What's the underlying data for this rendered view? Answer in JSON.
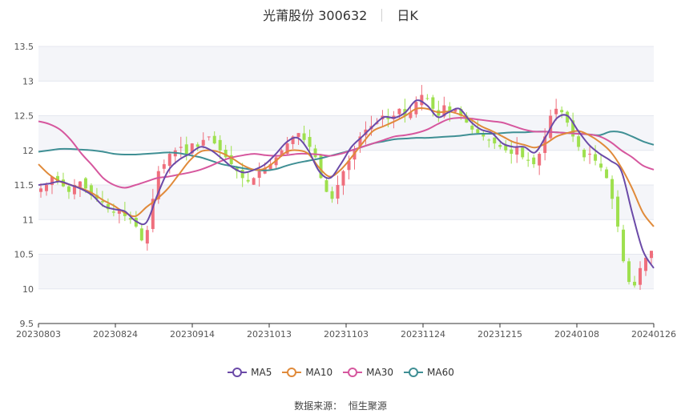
{
  "header": {
    "title": "光莆股份 300632",
    "period": "日K"
  },
  "source": {
    "label": "数据来源：",
    "value": "恒生聚源"
  },
  "colors": {
    "up": "#ef6f7d",
    "down": "#9ee04e",
    "grid": "#e4e7ef",
    "band": "#f4f5f9",
    "axis": "#555555",
    "ma5": "#6b4aa8",
    "ma10": "#e08a3a",
    "ma30": "#d6579e",
    "ma60": "#3f8f94"
  },
  "chart_data": {
    "type": "candlestick",
    "x_ticks": [
      "20230803",
      "20230824",
      "20230914",
      "20231013",
      "20231103",
      "20231124",
      "20231215",
      "20240108",
      "20240126"
    ],
    "ylim": [
      9.5,
      13.5
    ],
    "y_ticks": [
      "13.5",
      "13",
      "12.5",
      "12",
      "11.5",
      "11",
      "10.5",
      "10",
      "9.5"
    ],
    "grid": true,
    "legend_position": "bottom",
    "close_trace": [
      11.45,
      11.5,
      11.62,
      11.55,
      11.48,
      11.4,
      11.5,
      11.55,
      11.45,
      11.35,
      11.3,
      11.25,
      11.15,
      11.1,
      11.15,
      11.05,
      11.0,
      10.9,
      10.7,
      10.85,
      11.3,
      11.7,
      11.8,
      11.95,
      12.0,
      12.05,
      11.95,
      12.1,
      12.05,
      12.15,
      12.2,
      12.1,
      12.0,
      11.9,
      11.8,
      11.7,
      11.6,
      11.55,
      11.6,
      11.7,
      11.75,
      11.8,
      11.9,
      12.0,
      12.1,
      12.2,
      12.25,
      12.15,
      12.05,
      11.9,
      11.6,
      11.4,
      11.3,
      11.5,
      11.7,
      11.85,
      12.0,
      12.2,
      12.3,
      12.35,
      12.4,
      12.5,
      12.45,
      12.5,
      12.6,
      12.5,
      12.55,
      12.7,
      12.8,
      12.75,
      12.6,
      12.5,
      12.65,
      12.55,
      12.6,
      12.5,
      12.4,
      12.3,
      12.25,
      12.2,
      12.15,
      12.1,
      12.05,
      12.0,
      11.95,
      12.05,
      11.9,
      11.85,
      11.8,
      11.95,
      12.2,
      12.5,
      12.6,
      12.55,
      12.4,
      12.2,
      12.05,
      11.9,
      11.95,
      11.85,
      11.75,
      11.6,
      11.3,
      10.9,
      10.4,
      10.1,
      10.05,
      10.3,
      10.45,
      10.55
    ],
    "series": [
      {
        "name": "MA5",
        "values": [
          11.5,
          11.52,
          11.55,
          11.5,
          11.44,
          11.35,
          11.2,
          11.15,
          11.12,
          10.98,
          10.96,
          11.35,
          11.7,
          11.86,
          11.95,
          12.05,
          12.0,
          11.88,
          11.75,
          11.68,
          11.72,
          11.8,
          11.95,
          12.12,
          12.18,
          12.0,
          11.7,
          11.6,
          11.8,
          12.05,
          12.2,
          12.35,
          12.48,
          12.47,
          12.55,
          12.72,
          12.65,
          12.48,
          12.55,
          12.6,
          12.42,
          12.3,
          12.25,
          12.1,
          12.05,
          12.05,
          11.97,
          12.2,
          12.46,
          12.5,
          12.28,
          12.08,
          11.95,
          11.85,
          11.7,
          11.1,
          10.55,
          10.3
        ]
      },
      {
        "name": "MA10",
        "values": [
          11.8,
          11.65,
          11.55,
          11.5,
          11.45,
          11.38,
          11.28,
          11.2,
          11.1,
          11.05,
          11.18,
          11.3,
          11.45,
          11.65,
          11.85,
          11.98,
          12.0,
          11.96,
          11.88,
          11.78,
          11.72,
          11.74,
          11.85,
          11.98,
          12.0,
          11.95,
          11.75,
          11.62,
          11.72,
          11.9,
          12.1,
          12.28,
          12.35,
          12.42,
          12.5,
          12.6,
          12.6,
          12.55,
          12.56,
          12.52,
          12.45,
          12.35,
          12.28,
          12.2,
          12.12,
          12.08,
          12.04,
          12.1,
          12.2,
          12.25,
          12.28,
          12.22,
          12.12,
          11.98,
          11.75,
          11.45,
          11.1,
          10.9
        ]
      },
      {
        "name": "MA30",
        "values": [
          12.42,
          12.38,
          12.3,
          12.15,
          11.95,
          11.78,
          11.6,
          11.5,
          11.46,
          11.5,
          11.55,
          11.6,
          11.62,
          11.65,
          11.68,
          11.72,
          11.78,
          11.85,
          11.9,
          11.93,
          11.95,
          11.93,
          11.92,
          11.93,
          11.95,
          11.95,
          11.94,
          11.92,
          11.95,
          12.0,
          12.05,
          12.1,
          12.15,
          12.2,
          12.22,
          12.25,
          12.3,
          12.38,
          12.45,
          12.47,
          12.46,
          12.44,
          12.42,
          12.4,
          12.35,
          12.3,
          12.27,
          12.27,
          12.26,
          12.25,
          12.24,
          12.23,
          12.2,
          12.12,
          12.0,
          11.9,
          11.78,
          11.72
        ]
      },
      {
        "name": "MA60",
        "values": [
          11.98,
          12.0,
          12.02,
          12.02,
          12.01,
          12.0,
          11.98,
          11.95,
          11.94,
          11.94,
          11.95,
          11.96,
          11.97,
          11.96,
          11.93,
          11.9,
          11.85,
          11.8,
          11.77,
          11.74,
          11.72,
          11.71,
          11.73,
          11.78,
          11.82,
          11.85,
          11.88,
          11.92,
          11.96,
          12.0,
          12.05,
          12.1,
          12.13,
          12.16,
          12.17,
          12.18,
          12.18,
          12.19,
          12.2,
          12.21,
          12.23,
          12.24,
          12.24,
          12.25,
          12.26,
          12.26,
          12.27,
          12.27,
          12.26,
          12.25,
          12.24,
          12.23,
          12.22,
          12.27,
          12.26,
          12.2,
          12.13,
          12.08
        ]
      }
    ]
  }
}
